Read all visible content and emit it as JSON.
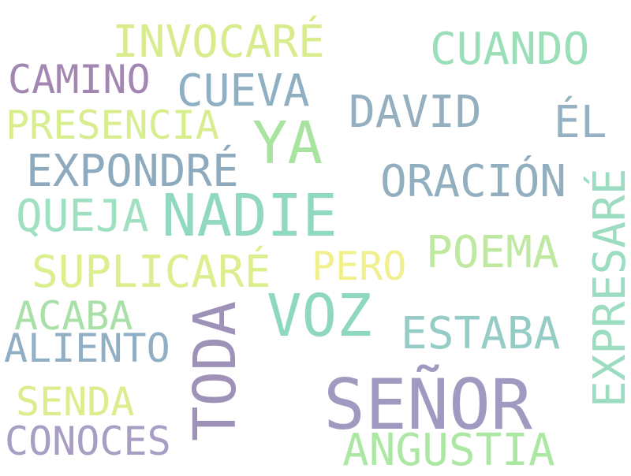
{
  "words": [
    {
      "text": "INVOCARÉ",
      "color": "#d8ec8e"
    },
    {
      "text": "CUANDO",
      "color": "#9adfb8"
    },
    {
      "text": "CAMINO",
      "color": "#a287b2"
    },
    {
      "text": "CUEVA",
      "color": "#8fb0c2"
    },
    {
      "text": "DAVID",
      "color": "#94afc0"
    },
    {
      "text": "ÉL",
      "color": "#96b2c2"
    },
    {
      "text": "PRESENCIA",
      "color": "#d8ee8e"
    },
    {
      "text": "YA",
      "color": "#a9e3a0"
    },
    {
      "text": "EXPONDRÉ",
      "color": "#8eaabe"
    },
    {
      "text": "ORACIÓN",
      "color": "#92afc0"
    },
    {
      "text": "EXPRESARÉ",
      "color": "#9cdcc0"
    },
    {
      "text": "QUEJA",
      "color": "#9fe0c0"
    },
    {
      "text": "NADIE",
      "color": "#90d8c0"
    },
    {
      "text": "POEMA",
      "color": "#bfe8a0"
    },
    {
      "text": "SUPLICARÉ",
      "color": "#dcef8e"
    },
    {
      "text": "PERO",
      "color": "#f0f08e"
    },
    {
      "text": "VOZ",
      "color": "#8ed8c2"
    },
    {
      "text": "ACABA",
      "color": "#a8e0a8"
    },
    {
      "text": "TODA",
      "color": "#9e92b8"
    },
    {
      "text": "ESTABA",
      "color": "#96ccc6"
    },
    {
      "text": "ALIENTO",
      "color": "#90aec4"
    },
    {
      "text": "SEÑOR",
      "color": "#a09ac0"
    },
    {
      "text": "SENDA",
      "color": "#dced8e"
    },
    {
      "text": "CONOCES",
      "color": "#a89ec4"
    },
    {
      "text": "ANGUSTIA",
      "color": "#ace8a4"
    }
  ]
}
